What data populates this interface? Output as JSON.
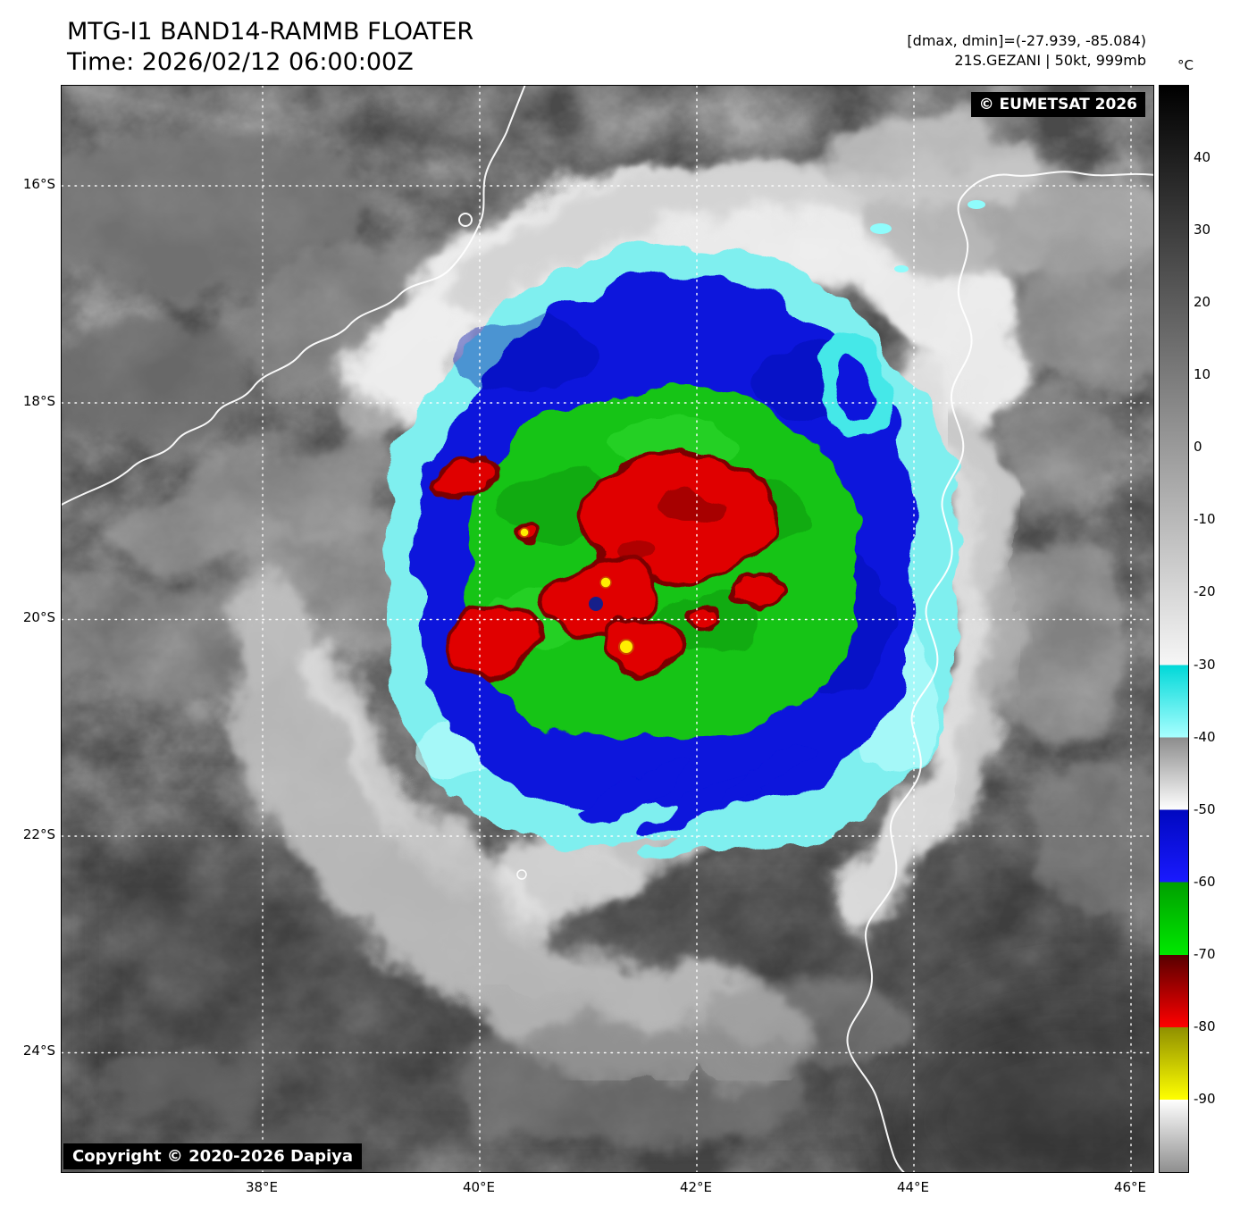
{
  "header": {
    "title": "MTG-I1 BAND14-RAMMB FLOATER",
    "time_line": "Time: 2026/02/12 06:00:00Z",
    "range_line": "[dmax, dmin]=(-27.939, -85.084)",
    "storm_line": "21S.GEZANI | 50kt, 999mb"
  },
  "map": {
    "satellite_credit": "© EUMETSAT 2026",
    "copyright": "Copyright © 2020-2026 Dapiya",
    "lat_labels": [
      "16°S",
      "18°S",
      "20°S",
      "22°S",
      "24°S"
    ],
    "lon_labels": [
      "38°E",
      "40°E",
      "42°E",
      "44°E",
      "46°E"
    ]
  },
  "colorbar": {
    "unit": "°C",
    "scale_top_c": 50,
    "scale_bottom_c": -100,
    "ticks": [
      40,
      30,
      20,
      10,
      0,
      -10,
      -20,
      -30,
      -40,
      -50,
      -60,
      -70,
      -80,
      -90
    ],
    "segments": [
      {
        "t0": 50,
        "t1": -30,
        "c0": "#000000",
        "c1": "#f6f6f6"
      },
      {
        "t0": -30,
        "t1": -40,
        "c0": "#00d8d8",
        "c1": "#a8ffff"
      },
      {
        "t0": -40,
        "t1": -50,
        "c0": "#8c8c8c",
        "c1": "#ffffff"
      },
      {
        "t0": -50,
        "t1": -60,
        "c0": "#0008c0",
        "c1": "#1a1aff"
      },
      {
        "t0": -60,
        "t1": -70,
        "c0": "#00a000",
        "c1": "#00e800"
      },
      {
        "t0": -70,
        "t1": -80,
        "c0": "#570000",
        "c1": "#ff0000"
      },
      {
        "t0": -80,
        "t1": -90,
        "c0": "#8f8f00",
        "c1": "#ffff00"
      },
      {
        "t0": -90,
        "t1": -100,
        "c0": "#ffffff",
        "c1": "#8f8f8f"
      }
    ]
  }
}
